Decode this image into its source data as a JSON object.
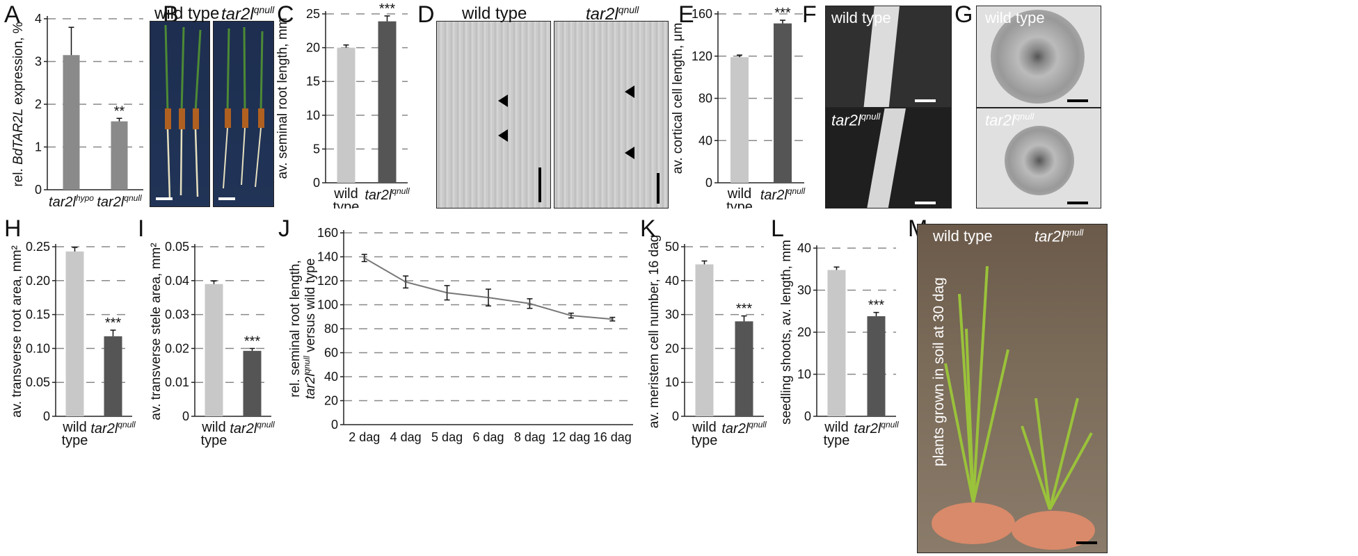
{
  "panels": {
    "A": "A",
    "B": "B",
    "C": "C",
    "D": "D",
    "E": "E",
    "F": "F",
    "G": "G",
    "H": "H",
    "I": "I",
    "J": "J",
    "K": "K",
    "L": "L",
    "M": "M"
  },
  "photos": {
    "B": {
      "left": "wild type",
      "right": "tar2l",
      "right_sup": "qnull"
    },
    "D": {
      "left": "wild type",
      "right": "tar2l",
      "right_sup": "qnull"
    },
    "F": {
      "top": "wild type",
      "bottom": "tar2l",
      "bottom_sup": "qnull"
    },
    "G": {
      "top": "wild type",
      "bottom": "tar2l",
      "bottom_sup": "qnull"
    },
    "M": {
      "left": "wild type",
      "right": "tar2l",
      "right_sup": "qnull",
      "vertical": "plants grown in soil at 30 dag"
    }
  },
  "chart_data": [
    {
      "id": "A",
      "type": "bar",
      "ylabel_parts": [
        "rel. ",
        "BdTAR2L",
        " expression, %"
      ],
      "categories": [
        {
          "main": "tar2l",
          "sup": "hypo"
        },
        {
          "main": "tar2l",
          "sup": "qnull"
        }
      ],
      "values": [
        3.15,
        1.6
      ],
      "errors": [
        0.65,
        0.07
      ],
      "stars": [
        "",
        "**"
      ],
      "colors": [
        "#8a8a8a",
        "#8a8a8a"
      ],
      "ylim": [
        0,
        4
      ],
      "yticks": [
        "0",
        "1",
        "2",
        "3",
        "4"
      ],
      "tickvals": [
        0,
        1,
        2,
        3,
        4
      ]
    },
    {
      "id": "C",
      "type": "bar",
      "ylabel_parts": [
        "av. seminal root length, mm"
      ],
      "categories": [
        {
          "lines": [
            "wild",
            "type"
          ]
        },
        {
          "main": "tar2l",
          "sup": "qnull"
        }
      ],
      "values": [
        20.0,
        23.9
      ],
      "errors": [
        0.4,
        0.8
      ],
      "stars": [
        "",
        "***"
      ],
      "colors": [
        "#c8c8c8",
        "#555555"
      ],
      "ylim": [
        0,
        25
      ],
      "yticks": [
        "0",
        "5",
        "10",
        "15",
        "20",
        "25"
      ],
      "tickvals": [
        0,
        5,
        10,
        15,
        20,
        25
      ]
    },
    {
      "id": "E",
      "type": "bar",
      "ylabel_parts": [
        "av. cortical cell length, μm"
      ],
      "categories": [
        {
          "lines": [
            "wild",
            "type"
          ]
        },
        {
          "main": "tar2l",
          "sup": "qnull"
        }
      ],
      "values": [
        119,
        151
      ],
      "errors": [
        2,
        3
      ],
      "stars": [
        "",
        "***"
      ],
      "colors": [
        "#c8c8c8",
        "#555555"
      ],
      "ylim": [
        0,
        160
      ],
      "yticks": [
        "0",
        "40",
        "80",
        "120",
        "160"
      ],
      "tickvals": [
        0,
        40,
        80,
        120,
        160
      ]
    },
    {
      "id": "H",
      "type": "bar",
      "ylabel_parts": [
        "av. transverse root area, mm²"
      ],
      "categories": [
        {
          "lines": [
            "wild",
            "type"
          ]
        },
        {
          "main": "tar2l",
          "sup": "qnull"
        }
      ],
      "values": [
        0.243,
        0.118
      ],
      "errors": [
        0.006,
        0.009
      ],
      "stars": [
        "",
        "***"
      ],
      "colors": [
        "#c8c8c8",
        "#555555"
      ],
      "ylim": [
        0,
        0.25
      ],
      "yticks": [
        "0",
        "0.05",
        "0.10",
        "0.15",
        "0.20",
        "0.25"
      ],
      "tickvals": [
        0,
        0.05,
        0.1,
        0.15,
        0.2,
        0.25
      ]
    },
    {
      "id": "I",
      "type": "bar",
      "ylabel_parts": [
        "av. transverse stele area, mm²"
      ],
      "categories": [
        {
          "lines": [
            "wild",
            "type"
          ]
        },
        {
          "main": "tar2l",
          "sup": "qnull"
        }
      ],
      "values": [
        0.039,
        0.0193
      ],
      "errors": [
        0.0009,
        0.0007
      ],
      "stars": [
        "",
        "***"
      ],
      "colors": [
        "#c8c8c8",
        "#555555"
      ],
      "ylim": [
        0,
        0.05
      ],
      "yticks": [
        "0",
        "0.01",
        "0.02",
        "0.03",
        "0.04",
        "0.05"
      ],
      "tickvals": [
        0,
        0.01,
        0.02,
        0.03,
        0.04,
        0.05
      ]
    },
    {
      "id": "J",
      "type": "line",
      "ylabel_line1": "rel. seminal root length,",
      "ylabel_line2_parts": [
        {
          "t": "tar2l",
          "i": true
        },
        {
          "t": "qnull",
          "i": true,
          "sup": true
        },
        {
          "t": " versus wild type",
          "i": false
        }
      ],
      "categories": [
        "2 dag",
        "4 dag",
        "5 dag",
        "6 dag",
        "8 dag",
        "12 dag",
        "16 dag"
      ],
      "values": [
        139,
        119,
        110,
        106,
        101,
        91,
        88
      ],
      "errors": [
        3,
        5,
        6,
        7,
        4,
        2,
        1.5
      ],
      "ylim": [
        0,
        160
      ],
      "yticks": [
        "0",
        "20",
        "40",
        "60",
        "80",
        "100",
        "120",
        "140",
        "160"
      ],
      "tickvals": [
        0,
        20,
        40,
        60,
        80,
        100,
        120,
        140,
        160
      ]
    },
    {
      "id": "K",
      "type": "bar",
      "ylabel_parts": [
        "av. meristem cell number, 16 dag"
      ],
      "categories": [
        {
          "lines": [
            "wild",
            "type"
          ]
        },
        {
          "main": "tar2l",
          "sup": "qnull"
        }
      ],
      "values": [
        44.8,
        28.0
      ],
      "errors": [
        1.0,
        1.6
      ],
      "stars": [
        "",
        "***"
      ],
      "colors": [
        "#c8c8c8",
        "#555555"
      ],
      "ylim": [
        0,
        50
      ],
      "yticks": [
        "0",
        "10",
        "20",
        "30",
        "40",
        "50"
      ],
      "tickvals": [
        0,
        10,
        20,
        30,
        40,
        50
      ]
    },
    {
      "id": "L",
      "type": "bar",
      "ylabel_parts": [
        "seedling shoots, av. length, mm"
      ],
      "categories": [
        {
          "lines": [
            "wild",
            "type"
          ]
        },
        {
          "main": "tar2l",
          "sup": "qnull"
        }
      ],
      "values": [
        34.8,
        23.8
      ],
      "errors": [
        0.7,
        0.9
      ],
      "stars": [
        "",
        "***"
      ],
      "colors": [
        "#c8c8c8",
        "#555555"
      ],
      "ylim": [
        0,
        40
      ],
      "yticks": [
        "0",
        "10",
        "20",
        "30",
        "40"
      ],
      "tickvals": [
        0,
        10,
        20,
        30,
        40
      ]
    }
  ]
}
